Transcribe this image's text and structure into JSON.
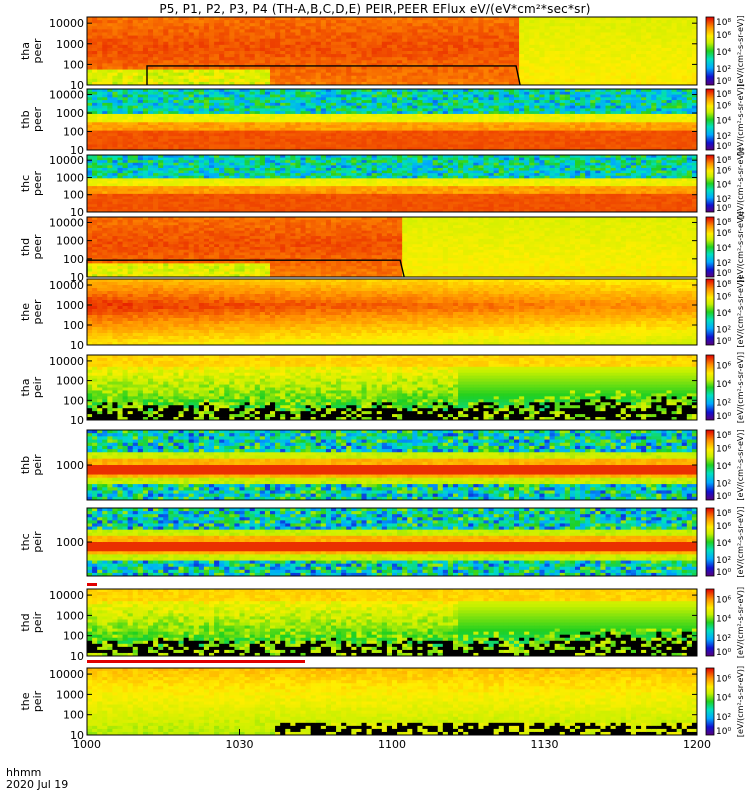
{
  "title": "P5, P1, P2, P3, P4 (TH-A,B,C,D,E) PEIR,PEER EFlux eV/(eV*cm²*sec*sr)",
  "footer": {
    "hhmm": "hhmm",
    "date": "2020 Jul 19"
  },
  "colors": {
    "bg": "#ffffff",
    "black": "#000000"
  },
  "chart_data": {
    "type": "heatmap",
    "xlabel": "",
    "x_range_minutes": [
      0,
      120
    ],
    "x_ticks": [
      "1000",
      "1030",
      "1100",
      "1130",
      "1200"
    ],
    "x_tick_minutes": [
      0,
      30,
      60,
      90,
      120
    ],
    "colorbar_label": "[eV/(cm²-s-sr-eV)]",
    "panels": [
      {
        "name": "tha peer",
        "line1": "tha",
        "line2": "peer",
        "yticks": [
          "10",
          "100",
          "1000",
          "10000"
        ],
        "ylog": [
          1,
          4.3
        ],
        "cbar_ticks": [
          "10⁰",
          "10²",
          "10⁴",
          "10⁶",
          "10⁸"
        ],
        "cbar_range_log": [
          0,
          8
        ],
        "pattern": "peer_hot",
        "cutoff_min": 85,
        "trace": true
      },
      {
        "name": "thb peer",
        "line1": "thb",
        "line2": "peer",
        "yticks": [
          "10",
          "100",
          "1000",
          "10000"
        ],
        "ylog": [
          1,
          4.3
        ],
        "cbar_ticks": [
          "10⁰",
          "10²",
          "10⁴",
          "10⁶",
          "10⁸"
        ],
        "cbar_range_log": [
          0,
          8
        ],
        "pattern": "peer_bands"
      },
      {
        "name": "thc peer",
        "line1": "thc",
        "line2": "peer",
        "yticks": [
          "10",
          "100",
          "1000",
          "10000"
        ],
        "ylog": [
          1,
          4.3
        ],
        "cbar_ticks": [
          "10⁰",
          "10²",
          "10⁴",
          "10⁶",
          "10⁸"
        ],
        "cbar_range_log": [
          0,
          8
        ],
        "pattern": "peer_bands"
      },
      {
        "name": "thd peer",
        "line1": "thd",
        "line2": "peer",
        "yticks": [
          "10",
          "100",
          "1000",
          "10000"
        ],
        "ylog": [
          1,
          4.3
        ],
        "cbar_ticks": [
          "10⁰",
          "10²",
          "10⁴",
          "10⁶",
          "10⁸"
        ],
        "cbar_range_log": [
          0,
          8
        ],
        "pattern": "peer_hot",
        "cutoff_min": 62,
        "trace": true
      },
      {
        "name": "the peer",
        "line1": "the",
        "line2": "peer",
        "yticks": [
          "10",
          "100",
          "1000",
          "10000"
        ],
        "ylog": [
          1,
          4.3
        ],
        "cbar_ticks": [
          "10⁰",
          "10²",
          "10⁴",
          "10⁶",
          "10⁸"
        ],
        "cbar_range_log": [
          0,
          8
        ],
        "pattern": "peer_warm"
      },
      {
        "name": "tha peir",
        "line1": "tha",
        "line2": "peir",
        "yticks": [
          "10",
          "100",
          "1000",
          "10000"
        ],
        "ylog": [
          1,
          4.3
        ],
        "cbar_ticks": [
          "10⁰",
          "10²",
          "10⁴",
          "10⁶"
        ],
        "cbar_range_log": [
          0,
          7
        ],
        "pattern": "peir_dark"
      },
      {
        "name": "thb peir",
        "line1": "thb",
        "line2": "peir",
        "yticks": [
          "1000"
        ],
        "ylog": [
          2,
          4
        ],
        "cbar_ticks": [
          "10⁰",
          "10²",
          "10⁴",
          "10⁶",
          "10⁸"
        ],
        "cbar_range_log": [
          0,
          8
        ],
        "pattern": "peir_bands"
      },
      {
        "name": "thc peir",
        "line1": "thc",
        "line2": "peir",
        "yticks": [
          "1000"
        ],
        "ylog": [
          2,
          4
        ],
        "cbar_ticks": [
          "10⁰",
          "10²",
          "10⁴",
          "10⁶",
          "10⁸"
        ],
        "cbar_range_log": [
          0,
          8
        ],
        "pattern": "peir_bands"
      },
      {
        "name": "thd peir",
        "line1": "thd",
        "line2": "peir",
        "yticks": [
          "10",
          "100",
          "1000",
          "10000"
        ],
        "ylog": [
          1,
          4.3
        ],
        "cbar_ticks": [
          "10⁰",
          "10²",
          "10⁴",
          "10⁶"
        ],
        "cbar_range_log": [
          0,
          7
        ],
        "pattern": "peir_dark"
      },
      {
        "name": "the peir",
        "line1": "the",
        "line2": "peir",
        "yticks": [
          "10",
          "100",
          "1000",
          "10000"
        ],
        "ylog": [
          1,
          4.3
        ],
        "cbar_ticks": [
          "10⁰",
          "10²",
          "10⁴",
          "10⁶"
        ],
        "cbar_range_log": [
          0,
          7
        ],
        "pattern": "peir_warm"
      }
    ]
  }
}
